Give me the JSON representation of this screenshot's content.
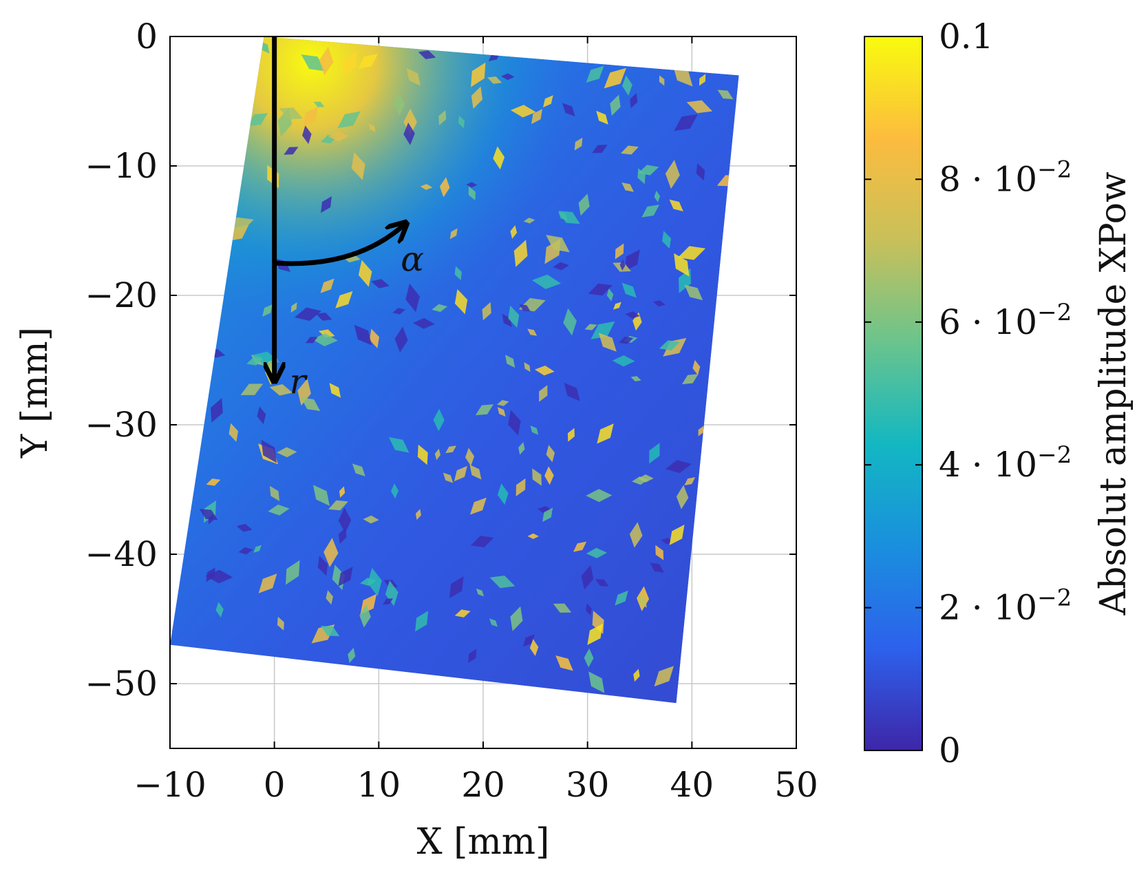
{
  "chart_data": {
    "type": "heatmap",
    "title": "",
    "xlabel": "X [mm]",
    "ylabel": "Y [mm]",
    "xlim": [
      -10,
      50
    ],
    "ylim": [
      -55,
      0
    ],
    "xticks": [
      -10,
      0,
      10,
      20,
      30,
      40,
      50
    ],
    "yticks": [
      0,
      -10,
      -20,
      -30,
      -40,
      -50
    ],
    "xtick_labels": [
      "−10",
      "0",
      "10",
      "20",
      "30",
      "40",
      "50"
    ],
    "ytick_labels": [
      "0",
      "−10",
      "−20",
      "−30",
      "−40",
      "−50"
    ],
    "grid": true,
    "region_corners_mm": [
      [
        -1,
        0
      ],
      [
        44.5,
        -3
      ],
      [
        38.5,
        -51.5
      ],
      [
        -10,
        -47
      ]
    ],
    "field_description": "Tilted quadrilateral surface; high amplitude near top-left corner decaying toward bottom-right, speckled with localized peaks",
    "hotspot_mm": [
      3.5,
      -2
    ],
    "colorbar": {
      "label": "Absolut amplitude XPow",
      "range": [
        0,
        0.1
      ],
      "ticks": [
        0,
        0.02,
        0.04,
        0.06,
        0.08,
        0.1
      ],
      "tick_labels": [
        {
          "text": "0",
          "sup": ""
        },
        {
          "text": "2 · 10",
          "sup": "−2"
        },
        {
          "text": "4 · 10",
          "sup": "−2"
        },
        {
          "text": "6 · 10",
          "sup": "−2"
        },
        {
          "text": "8 · 10",
          "sup": "−2"
        },
        {
          "text": "0.1",
          "sup": ""
        }
      ],
      "colormap": [
        "#3e26a8",
        "#2d61ec",
        "#1a8fde",
        "#13b7c2",
        "#6ac48d",
        "#c8c05a",
        "#fcbc3e",
        "#f9fb0e"
      ]
    },
    "annotations": {
      "r_label": "r",
      "alpha_label": "α",
      "r_arrow_mm": {
        "x": 0,
        "y_from": 0,
        "y_to": -26.5
      },
      "alpha_arc_mm": {
        "from": [
          0,
          -17.5
        ],
        "to": [
          12.5,
          -14.5
        ]
      }
    }
  }
}
